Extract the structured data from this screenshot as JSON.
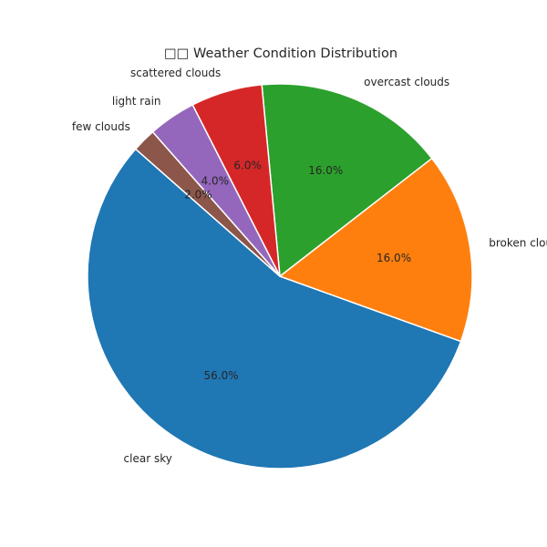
{
  "chart_data": {
    "type": "pie",
    "title": "□□ Weather Condition Distribution",
    "start_angle_deg": 138.6,
    "direction": "counterclockwise",
    "legend": "none",
    "slices": [
      {
        "label": "clear sky",
        "value": 56.0,
        "pct_label": "56.0%",
        "color": "#1f77b4"
      },
      {
        "label": "broken clouds",
        "value": 16.0,
        "pct_label": "16.0%",
        "color": "#ff7f0e"
      },
      {
        "label": "overcast clouds",
        "value": 16.0,
        "pct_label": "16.0%",
        "color": "#2ca02c"
      },
      {
        "label": "scattered clouds",
        "value": 6.0,
        "pct_label": "6.0%",
        "color": "#d62728"
      },
      {
        "label": "light rain",
        "value": 4.0,
        "pct_label": "4.0%",
        "color": "#9467bd"
      },
      {
        "label": "few clouds",
        "value": 2.0,
        "pct_label": "2.0%",
        "color": "#8c564b"
      }
    ]
  }
}
